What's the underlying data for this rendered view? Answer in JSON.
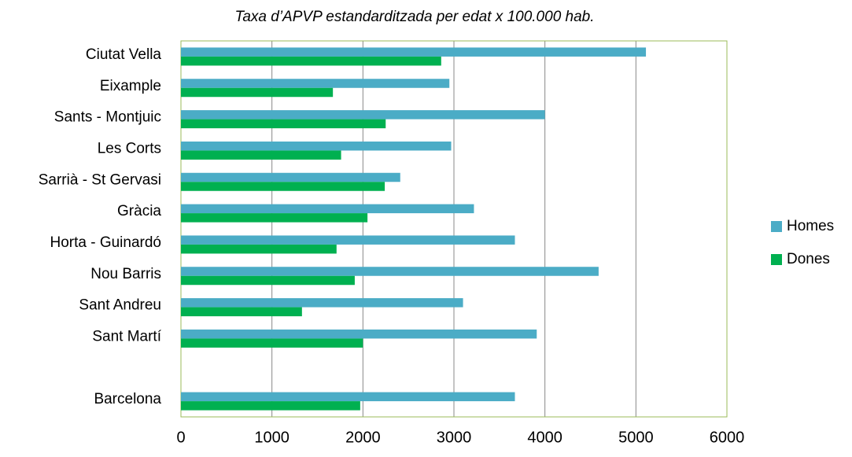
{
  "chart_data": {
    "type": "hbar",
    "title": "Taxa d’APVP estandarditzada per edat x 100.000 hab.",
    "categories": [
      "Ciutat Vella",
      "Eixample",
      "Sants - Montjuic",
      "Les Corts",
      "Sarrià - St Gervasi",
      "Gràcia",
      "Horta - Guinardó",
      "Nou Barris",
      "Sant Andreu",
      "Sant Martí",
      null,
      "Barcelona"
    ],
    "series": [
      {
        "name": "Homes",
        "color": "#4bacc6",
        "values": [
          5110,
          2950,
          4000,
          2970,
          2410,
          3220,
          3670,
          4590,
          3100,
          3910,
          null,
          3670
        ]
      },
      {
        "name": "Dones",
        "color": "#00b050",
        "values": [
          2860,
          1670,
          2250,
          1760,
          2240,
          2050,
          1710,
          1910,
          1330,
          2000,
          null,
          1970
        ]
      }
    ],
    "xlim": [
      0,
      6000
    ],
    "xticks": [
      0,
      1000,
      2000,
      3000,
      4000,
      5000,
      6000
    ],
    "grid": true,
    "legend": "right"
  }
}
